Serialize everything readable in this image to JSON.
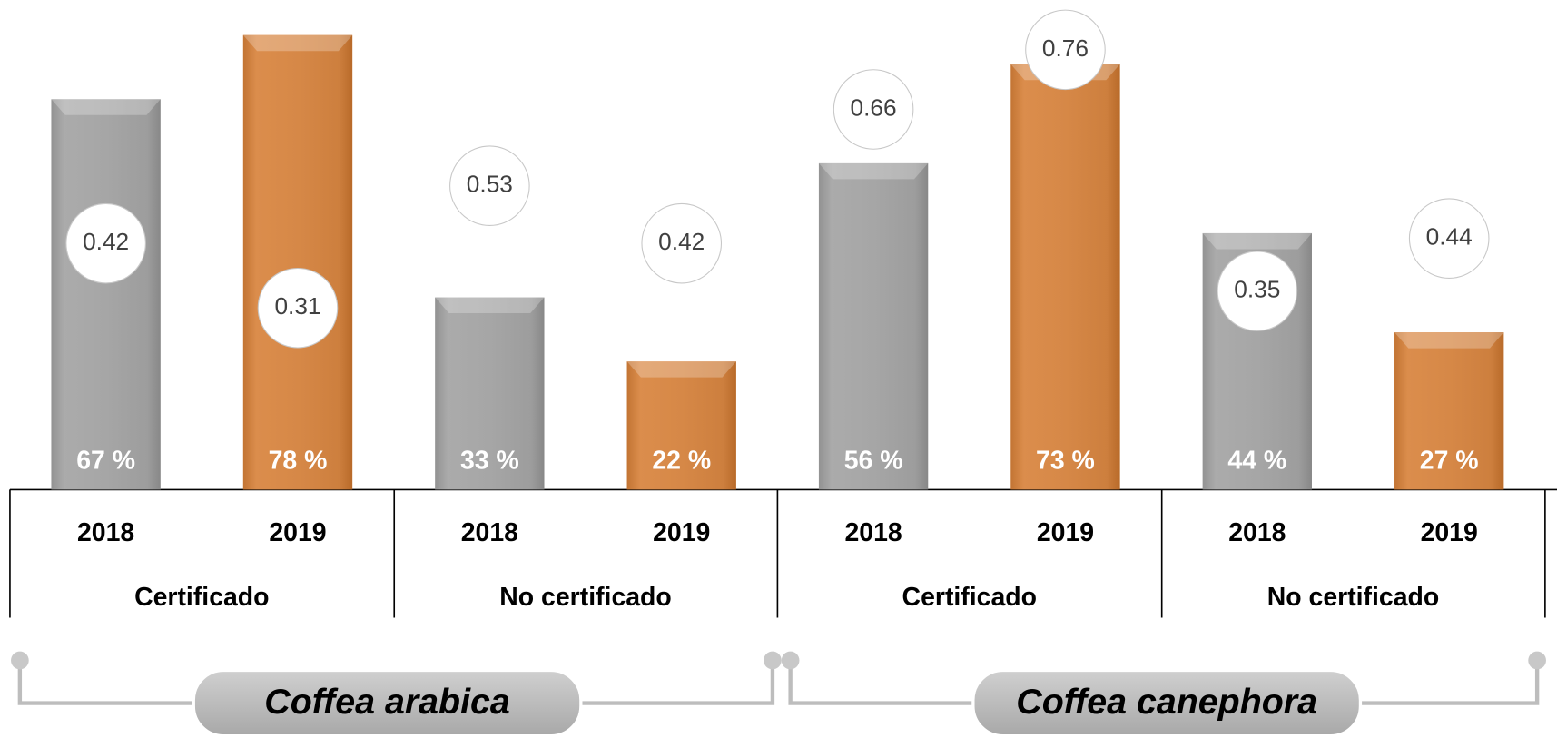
{
  "chart_data": {
    "type": "bar",
    "categories": [
      "2018",
      "2019",
      "2018",
      "2019",
      "2018",
      "2019",
      "2018",
      "2019"
    ],
    "values": [
      67,
      78,
      33,
      22,
      56,
      73,
      44,
      27
    ],
    "value_labels": [
      "67 %",
      "78 %",
      "33 %",
      "22 %",
      "56 %",
      "73 %",
      "44 %",
      "27 %"
    ],
    "circle_values": [
      0.42,
      0.31,
      0.53,
      0.42,
      0.66,
      0.76,
      0.35,
      0.44
    ],
    "colors": [
      "#a6a6a6",
      "#f07814",
      "#a6a6a6",
      "#f07814",
      "#a6a6a6",
      "#f07814",
      "#a6a6a6",
      "#f07814"
    ],
    "groups": [
      "Certificado",
      "No certificado",
      "Certificado",
      "No certificado"
    ],
    "supergroups": [
      "Coffea arabica",
      "Coffea canephora"
    ],
    "ylim": [
      0,
      84
    ]
  }
}
